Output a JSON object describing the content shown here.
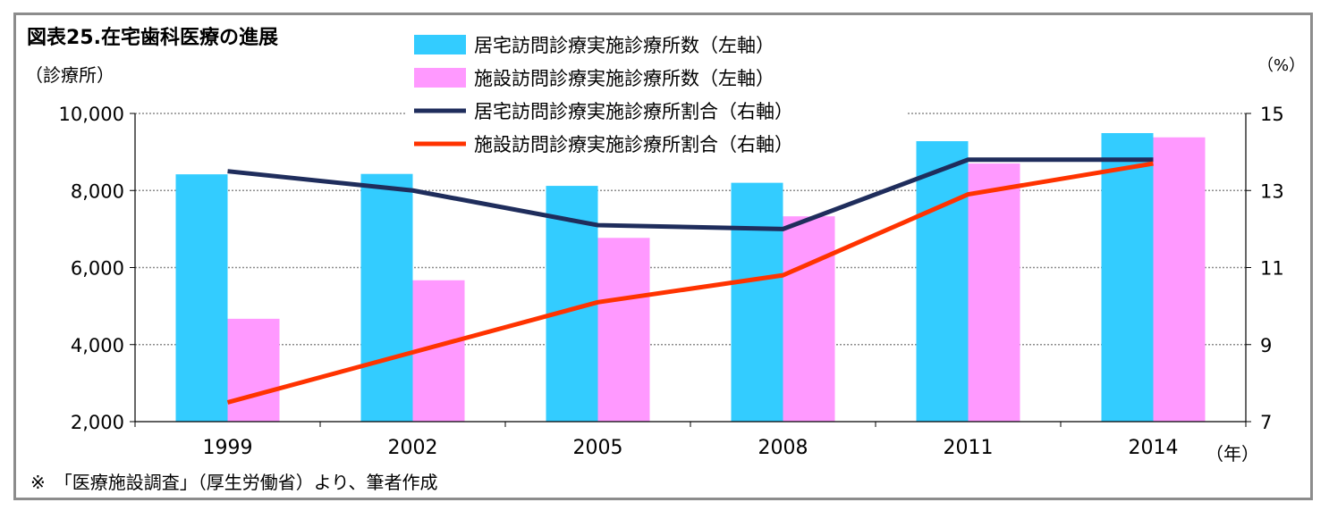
{
  "chart_data": {
    "type": "bar",
    "title": "図表25.在宅歯科医療の進展",
    "ylabel_left": "（診療所）",
    "ylabel_right": "（%）",
    "xlabel": "（年）",
    "footnote": "※　「医療施設調査」（厚生労働省）より、筆者作成",
    "categories": [
      "1999",
      "2002",
      "2005",
      "2008",
      "2011",
      "2014"
    ],
    "ylim_left": [
      2000,
      10000
    ],
    "yticks_left": [
      "2,000",
      "4,000",
      "6,000",
      "8,000",
      "10,000"
    ],
    "ylim_right": [
      7,
      15
    ],
    "yticks_right": [
      "7",
      "9",
      "11",
      "13",
      "15"
    ],
    "grid": "horizontal dotted",
    "legend_position": "top-center",
    "series": [
      {
        "name": "居宅訪問診療実施診療所数（左軸）",
        "type": "bar",
        "axis": "left",
        "color": "#33ccff",
        "values": [
          8420,
          8430,
          8120,
          8200,
          9280,
          9490
        ]
      },
      {
        "name": "施設訪問診療実施診療所数（左軸）",
        "type": "bar",
        "axis": "left",
        "color": "#ff99ff",
        "values": [
          4670,
          5670,
          6770,
          7330,
          8700,
          9380
        ]
      },
      {
        "name": "居宅訪問診療実施診療所割合（右軸）",
        "type": "line",
        "axis": "right",
        "color": "#1f2d5c",
        "values": [
          13.5,
          13.0,
          12.1,
          12.0,
          13.8,
          13.8
        ]
      },
      {
        "name": "施設訪問診療実施診療所割合（右軸）",
        "type": "line",
        "axis": "right",
        "color": "#ff3300",
        "values": [
          7.5,
          8.8,
          10.1,
          10.8,
          12.9,
          13.7
        ]
      }
    ]
  }
}
